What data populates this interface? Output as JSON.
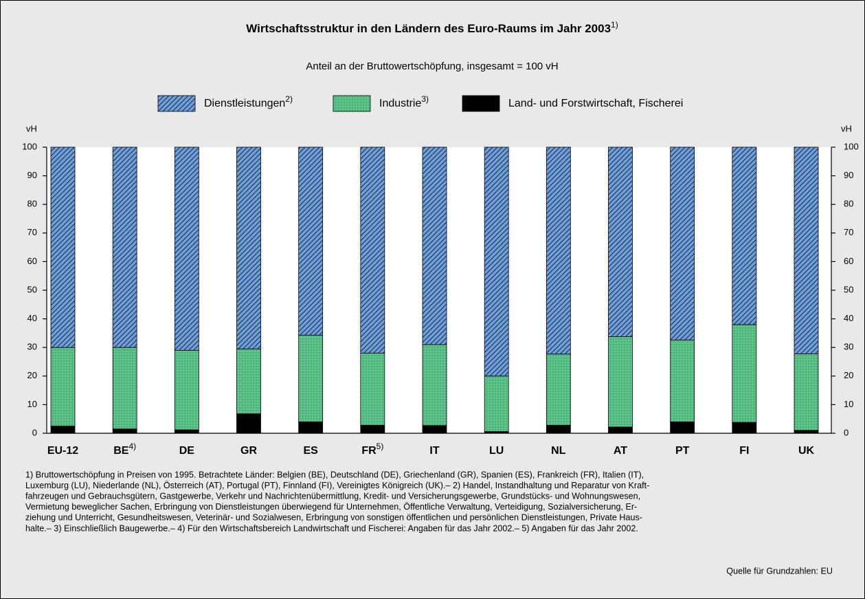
{
  "chart_data": {
    "type": "stacked_bar",
    "title": "Wirtschaftsstruktur in den Ländern des Euro-Raums im Jahr 2003",
    "title_footnote": "1)",
    "subtitle": "Anteil an der Bruttowertschöpfung, insgesamt = 100 vH",
    "ylabel": "vH",
    "categories": [
      "EU-12",
      "BE",
      "DE",
      "GR",
      "ES",
      "FR",
      "IT",
      "LU",
      "NL",
      "AT",
      "PT",
      "FI",
      "UK"
    ],
    "category_footnotes": {
      "1": "4)",
      "5": "5)"
    },
    "series": [
      {
        "name": "Dienstleistungen",
        "footnote": "2)",
        "color": "#6f9fd8",
        "pattern": "hatch",
        "values": [
          70,
          70,
          71,
          70.5,
          65.7,
          72,
          69,
          80,
          72.3,
          66.2,
          67.4,
          62,
          72.2
        ]
      },
      {
        "name": "Industrie",
        "footnote": "3)",
        "color": "#5cc48a",
        "pattern": "dots",
        "values": [
          27.5,
          28.5,
          27.8,
          22.7,
          30.3,
          25.2,
          28.3,
          19.4,
          24.9,
          31.6,
          28.6,
          34.2,
          26.8
        ]
      },
      {
        "name": "Land- und Forstwirtschaft, Fischerei",
        "color": "#000000",
        "pattern": "solid",
        "values": [
          2.5,
          1.5,
          1.2,
          6.8,
          4,
          2.8,
          2.7,
          0.6,
          2.8,
          2.2,
          4,
          3.8,
          1
        ]
      }
    ],
    "ylim": [
      0,
      100
    ],
    "yticks": [
      0,
      10,
      20,
      30,
      40,
      50,
      60,
      70,
      80,
      90,
      100
    ],
    "footnote_lines": [
      "1) Bruttowertschöpfung in Preisen von 1995. Betrachtete Länder: Belgien (BE), Deutschland (DE), Griechenland (GR), Spanien (ES), Frankreich (FR), Italien (IT),",
      "Luxemburg (LU), Niederlande (NL), Österreich (AT), Portugal (PT), Finnland (FI), Vereinigtes Königreich (UK).– 2) Handel, Instandhaltung und Reparatur von Kraft-",
      "fahrzeugen und Gebrauchsgütern, Gastgewerbe, Verkehr und Nachrichtenübermittlung, Kredit- und Versicherungsgewerbe, Grundstücks- und Wohnungswesen,",
      "Vermietung beweglicher Sachen, Erbringung von Dienstleistungen überwiegend für Unternehmen, Öffentliche Verwaltung, Verteidigung, Sozialversicherung, Er-",
      "ziehung und Unterricht, Gesundheitswesen, Veterinär- und Sozialwesen, Erbringung von sonstigen öffentlichen und persönlichen Dienstleistungen, Private Haus-",
      "halte.– 3) Einschließlich Baugewerbe.– 4) Für den Wirtschaftsbereich Landwirtschaft und Fischerei: Angaben für das Jahr 2002.– 5) Angaben für das Jahr 2002."
    ],
    "source": "Quelle für Grundzahlen: EU"
  }
}
